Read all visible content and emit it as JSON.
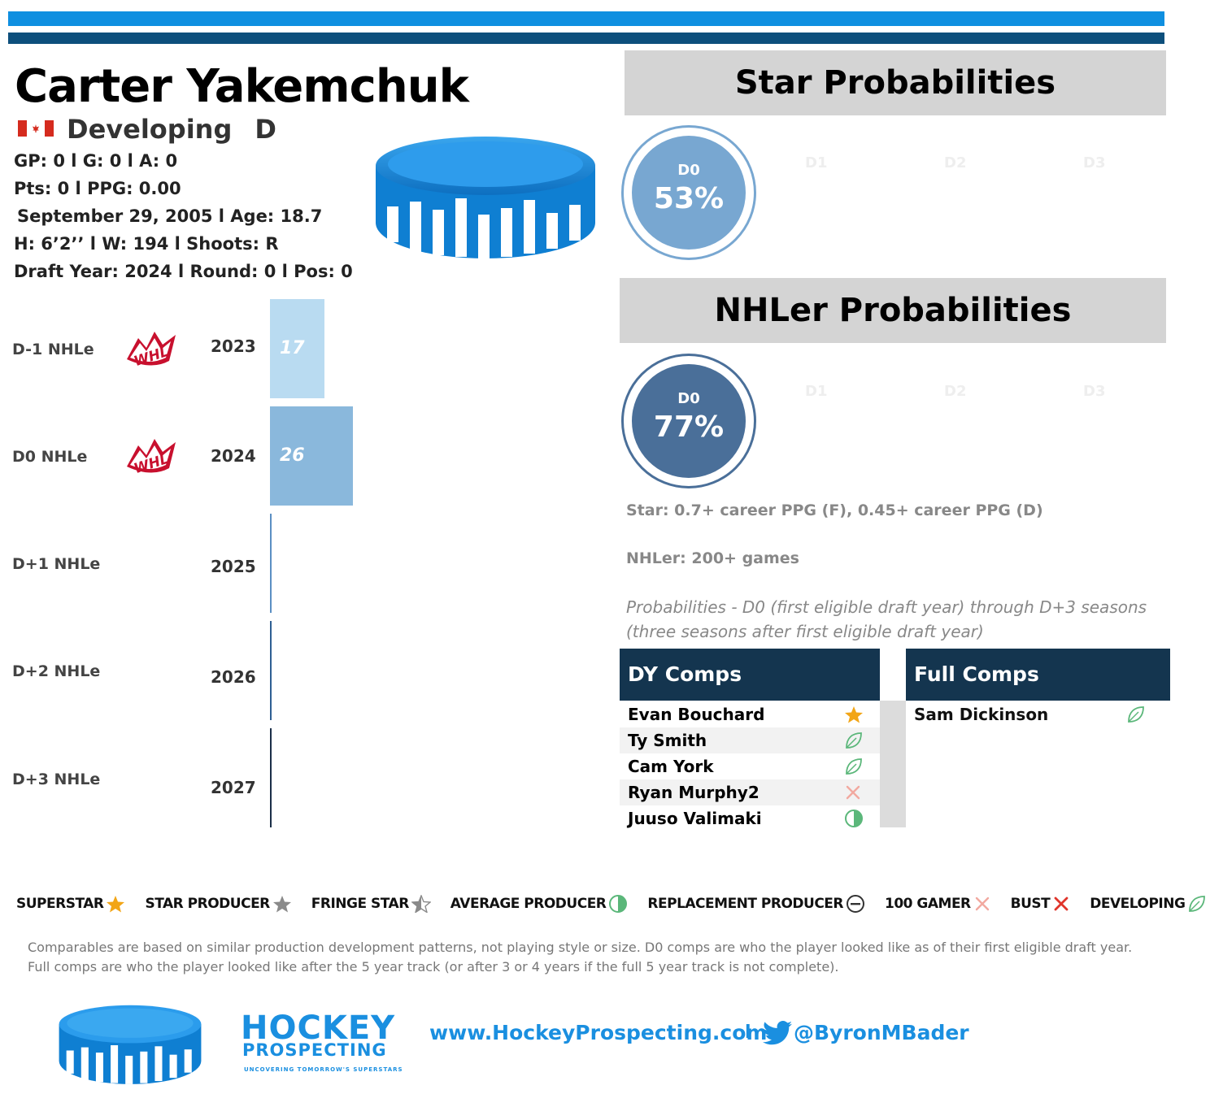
{
  "player": {
    "name": "Carter Yakemchuk",
    "status": "Developing",
    "position": "D",
    "line1": "GP: 0 l G: 0 l A: 0",
    "line2": "Pts: 0 l PPG: 0.00",
    "line3": "September 29, 2005 l Age: 18.7",
    "line4": "H: 6’2’’ l W: 194 l Shoots: R",
    "line5": "Draft Year: 2024 l Round: 0 l Pos: 0",
    "flag_icon": "canada-flag-icon"
  },
  "nhle": {
    "rows": [
      {
        "label": "D-1 NHLe",
        "year": "2023",
        "value": "17",
        "has_league": true,
        "color": "#b9dbf1"
      },
      {
        "label": "D0 NHLe",
        "year": "2024",
        "value": "26",
        "has_league": true,
        "color": "#8ab8dc"
      },
      {
        "label": "D+1 NHLe",
        "year": "2025",
        "value": "",
        "has_league": false,
        "color": "#5b8fc3"
      },
      {
        "label": "D+2 NHLe",
        "year": "2026",
        "value": "",
        "has_league": false,
        "color": "#2f5f93"
      },
      {
        "label": "D+3 NHLe",
        "year": "2027",
        "value": "",
        "has_league": false,
        "color": "#1b2f48"
      }
    ],
    "league_logo": "WHL"
  },
  "star": {
    "title": "Star Probabilities",
    "d0_label": "D0",
    "d0_value": "53%",
    "ghost": [
      "D1",
      "D2",
      "D3"
    ],
    "color": "#78a7d1"
  },
  "nhler": {
    "title": "NHLer Probabilities",
    "d0_label": "D0",
    "d0_value": "77%",
    "ghost": [
      "D1",
      "D2",
      "D3"
    ],
    "color": "#4a6f99"
  },
  "definitions": {
    "star": "Star: 0.7+ career PPG (F), 0.45+ career PPG (D)",
    "nhler": "NHLer: 200+ games",
    "probabilities": "Probabilities - D0 (first eligible draft year) through D+3 seasons (three seasons after first eligible draft year)"
  },
  "dy_comps": {
    "title": "DY Comps",
    "rows": [
      {
        "name": "Evan Bouchard",
        "icon": "superstar-icon"
      },
      {
        "name": "Ty Smith",
        "icon": "developing-icon"
      },
      {
        "name": "Cam York",
        "icon": "developing-icon"
      },
      {
        "name": "Ryan Murphy2",
        "icon": "100-gamer-icon"
      },
      {
        "name": "Juuso Valimaki",
        "icon": "average-producer-icon"
      }
    ]
  },
  "full_comps": {
    "title": "Full Comps",
    "rows": [
      {
        "name": "Sam Dickinson",
        "icon": "developing-icon"
      }
    ]
  },
  "legend": [
    {
      "label": "SUPERSTAR",
      "icon": "superstar-icon"
    },
    {
      "label": "STAR PRODUCER",
      "icon": "star-producer-icon"
    },
    {
      "label": "FRINGE STAR",
      "icon": "fringe-star-icon"
    },
    {
      "label": "AVERAGE PRODUCER",
      "icon": "average-producer-icon"
    },
    {
      "label": "REPLACEMENT PRODUCER",
      "icon": "replacement-producer-icon"
    },
    {
      "label": "100 GAMER",
      "icon": "100-gamer-icon"
    },
    {
      "label": "BUST",
      "icon": "bust-icon"
    },
    {
      "label": "DEVELOPING",
      "icon": "developing-icon"
    }
  ],
  "footnote": "Comparables are based on similar production development patterns, not playing style or size. D0 comps are who the player looked like as of their first eligible draft year. Full comps are who the player looked like after the 5 year track (or after 3 or 4 years if the full 5 year track is not complete).",
  "footer": {
    "brand_line1": "HOCKEY",
    "brand_line2": "PROSPECTING",
    "tagline": "UNCOVERING TOMORROW'S SUPERSTARS",
    "website": "www.HockeyProspecting.com",
    "separator": "l",
    "handle": "@ByronMBader",
    "accent": "#1a8fe0"
  }
}
